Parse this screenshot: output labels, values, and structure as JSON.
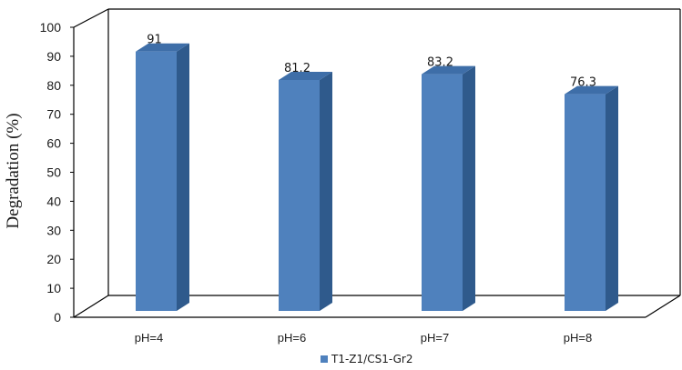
{
  "chart_data": {
    "type": "bar",
    "categories": [
      "pH=4",
      "pH=6",
      "pH=7",
      "pH=8"
    ],
    "series": [
      {
        "name": "T1-Z1/CS1-Gr2",
        "values": [
          91,
          81.2,
          83.2,
          76.3
        ]
      }
    ],
    "data_labels": [
      "91",
      "81.2",
      "83.2",
      "76.3"
    ],
    "ylabel": "Degradation (%)",
    "xlabel": "",
    "ylim": [
      0,
      100
    ],
    "yticks": [
      0,
      10,
      20,
      30,
      40,
      50,
      60,
      70,
      80,
      90,
      100
    ],
    "three_d": true,
    "grid": false,
    "legend": "bottom-center",
    "colors": {
      "bar_front": "#4f81bd",
      "bar_side": "#2f5a8c",
      "bar_top": "#3e6ea8",
      "frame": "#000000"
    }
  }
}
